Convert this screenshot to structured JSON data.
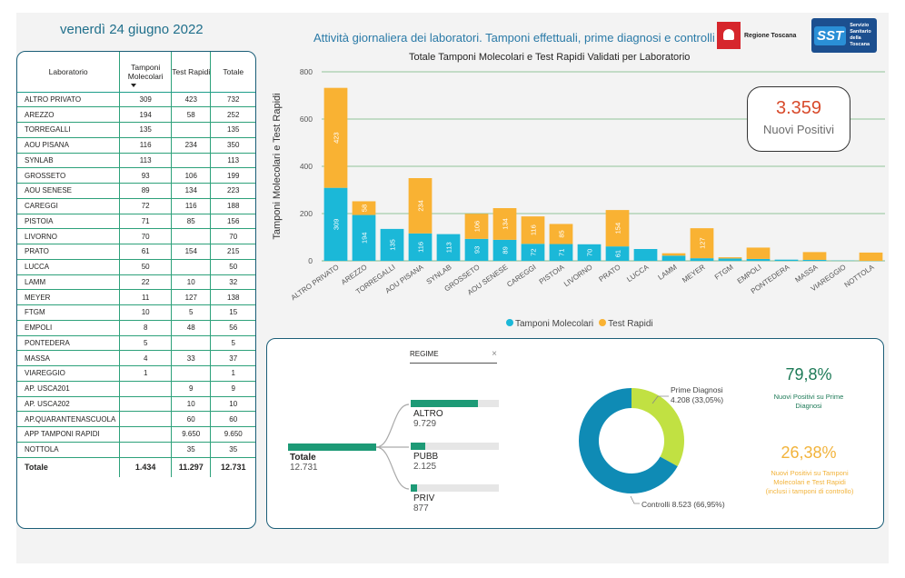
{
  "header": {
    "date": "venerdì 24 giugno 2022",
    "headline": "Attività giornaliera dei laboratori. Tamponi effettuali, prime diagnosi e controlli",
    "logo_rt_text": "Regione Toscana",
    "logo_sst_mark": "SST",
    "logo_sst_lines": [
      "Servizio",
      "Sanitario",
      "della",
      "Toscana"
    ]
  },
  "table": {
    "headers": [
      "Laboratorio",
      "Tamponi Molecolari",
      "Test Rapidi",
      "Totale"
    ],
    "rows": [
      [
        "ALTRO PRIVATO",
        "309",
        "423",
        "732"
      ],
      [
        "AREZZO",
        "194",
        "58",
        "252"
      ],
      [
        "TORREGALLI",
        "135",
        "",
        "135"
      ],
      [
        "AOU PISANA",
        "116",
        "234",
        "350"
      ],
      [
        "SYNLAB",
        "113",
        "",
        "113"
      ],
      [
        "GROSSETO",
        "93",
        "106",
        "199"
      ],
      [
        "AOU SENESE",
        "89",
        "134",
        "223"
      ],
      [
        "CAREGGI",
        "72",
        "116",
        "188"
      ],
      [
        "PISTOIA",
        "71",
        "85",
        "156"
      ],
      [
        "LIVORNO",
        "70",
        "",
        "70"
      ],
      [
        "PRATO",
        "61",
        "154",
        "215"
      ],
      [
        "LUCCA",
        "50",
        "",
        "50"
      ],
      [
        "LAMM",
        "22",
        "10",
        "32"
      ],
      [
        "MEYER",
        "11",
        "127",
        "138"
      ],
      [
        "FTGM",
        "10",
        "5",
        "15"
      ],
      [
        "EMPOLI",
        "8",
        "48",
        "56"
      ],
      [
        "PONTEDERA",
        "5",
        "",
        "5"
      ],
      [
        "MASSA",
        "4",
        "33",
        "37"
      ],
      [
        "VIAREGGIO",
        "1",
        "",
        "1"
      ],
      [
        "AP. USCA201",
        "",
        "9",
        "9"
      ],
      [
        "AP. USCA202",
        "",
        "10",
        "10"
      ],
      [
        "AP.QUARANTENASCUOLA",
        "",
        "60",
        "60"
      ],
      [
        "APP TAMPONI RAPIDI",
        "",
        "9.650",
        "9.650"
      ],
      [
        "NOTTOLA",
        "",
        "35",
        "35"
      ]
    ],
    "total": [
      "Totale",
      "1.434",
      "11.297",
      "12.731"
    ]
  },
  "kpi": {
    "value": "3.359",
    "label": "Nuovi Positivi"
  },
  "chart_data": {
    "type": "bar",
    "stacked": true,
    "title": "Totale Tamponi Molecolari e Test Rapidi Validati per Laboratorio",
    "ylabel": "Tamponi Molecolari e Test Rapidi",
    "xlabel": "",
    "ylim": [
      0,
      800
    ],
    "yticks": [
      0,
      200,
      400,
      600,
      800
    ],
    "grid": true,
    "legend_position": "bottom",
    "categories": [
      "ALTRO PRIVATO",
      "AREZZO",
      "TORREGALLI",
      "AOU PISANA",
      "SYNLAB",
      "GROSSETO",
      "AOU SENESE",
      "CAREGGI",
      "PISTOIA",
      "LIVORNO",
      "PRATO",
      "LUCCA",
      "LAMM",
      "MEYER",
      "FTGM",
      "EMPOLI",
      "PONTEDERA",
      "MASSA",
      "VIAREGGIO",
      "NOTTOLA"
    ],
    "series": [
      {
        "name": "Tamponi Molecolari",
        "color": "#1bb8d8",
        "values": [
          309,
          194,
          135,
          116,
          113,
          93,
          89,
          72,
          71,
          70,
          61,
          50,
          22,
          11,
          10,
          8,
          5,
          4,
          1,
          0
        ]
      },
      {
        "name": "Test Rapidi",
        "color": "#f9b233",
        "values": [
          423,
          58,
          0,
          234,
          0,
          106,
          134,
          116,
          85,
          0,
          154,
          0,
          10,
          127,
          5,
          48,
          0,
          33,
          0,
          35
        ]
      }
    ]
  },
  "decomposition": {
    "header": "REGIME",
    "close_glyph": "×",
    "root": {
      "label": "Totale",
      "value": "12.731",
      "color": "#1d9a76"
    },
    "children": [
      {
        "label": "ALTRO",
        "value": "9.729",
        "fraction": 0.764
      },
      {
        "label": "PUBB",
        "value": "2.125",
        "fraction": 0.167
      },
      {
        "label": "PRIV",
        "value": "877",
        "fraction": 0.069
      }
    ]
  },
  "donut": {
    "segments": [
      {
        "label": "Prime Diagnosi",
        "detail": "4.208 (33,05%)",
        "value": 4208,
        "color": "#c1e142"
      },
      {
        "label": "Controlli",
        "detail": "8.523 (66,95%)",
        "value": 8523,
        "color": "#0f8bb5"
      }
    ]
  },
  "stats": [
    {
      "value": "79,8%",
      "desc": "Nuovi Positivi su Prime Diagnosi",
      "color": "#1d7a57"
    },
    {
      "value": "26,38%",
      "desc": "Nuovi Positivi su Tamponi Molecolari e Test Rapidi (inclusi i tamponi di controllo)",
      "color": "#f2b33b"
    }
  ]
}
